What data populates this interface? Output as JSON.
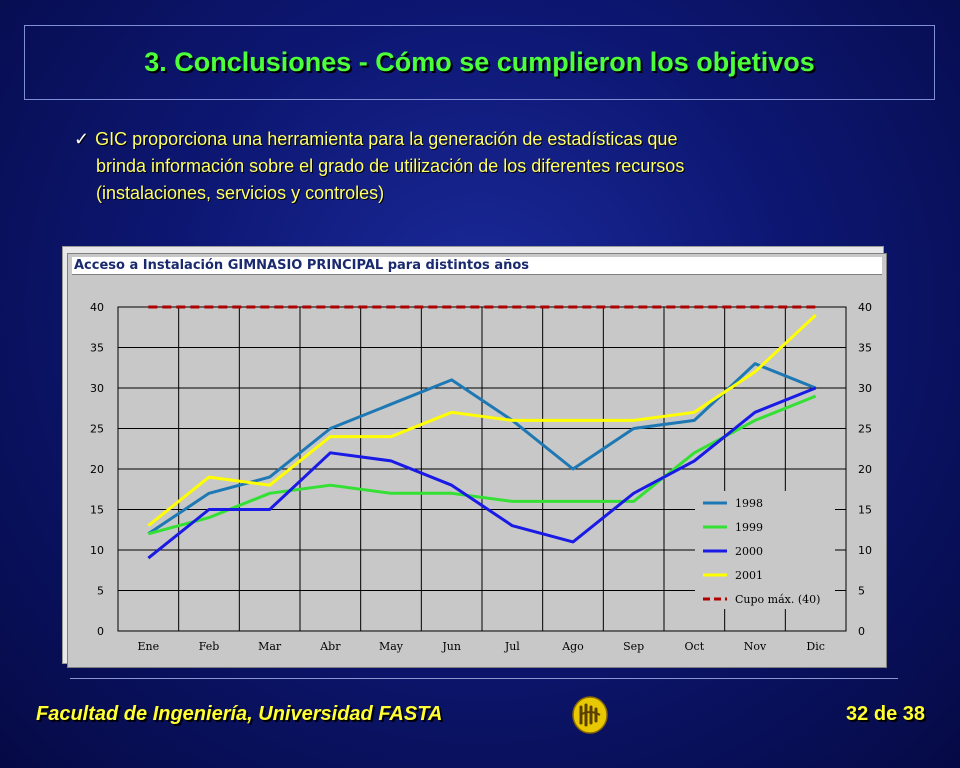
{
  "slide": {
    "title": "3.  Conclusiones - Cómo se cumplieron los objetivos",
    "bullet_line1": "GIC proporciona una herramienta para la generación de estadísticas que",
    "bullet_line2": "brinda información sobre el grado de utilización de los diferentes recursos",
    "bullet_line3": "(instalaciones, servicios y controles)",
    "check_glyph": "✓"
  },
  "footer": {
    "left": "Facultad de Ingeniería, Universidad FASTA",
    "page": "32 de 38"
  },
  "chart_data": {
    "type": "line",
    "title": "Acceso a Instalación GIMNASIO PRINCIPAL para distintos años",
    "categories": [
      "Ene",
      "Feb",
      "Mar",
      "Abr",
      "May",
      "Jun",
      "Jul",
      "Ago",
      "Sep",
      "Oct",
      "Nov",
      "Dic"
    ],
    "ylim": [
      0,
      40
    ],
    "yticks": [
      0,
      5,
      10,
      15,
      20,
      25,
      30,
      35,
      40
    ],
    "grid": true,
    "legend_position": "bottom-right",
    "series": [
      {
        "name": "1998",
        "color": "#1e78b4",
        "style": "solid",
        "values": [
          12,
          17,
          19,
          25,
          28,
          31,
          26,
          20,
          25,
          26,
          33,
          30
        ]
      },
      {
        "name": "1999",
        "color": "#33e033",
        "style": "solid",
        "values": [
          12,
          14,
          17,
          18,
          17,
          17,
          16,
          16,
          16,
          22,
          26,
          29
        ]
      },
      {
        "name": "2000",
        "color": "#1a1ae6",
        "style": "solid",
        "values": [
          9,
          15,
          15,
          22,
          21,
          18,
          13,
          11,
          17,
          21,
          27,
          30
        ]
      },
      {
        "name": "2001",
        "color": "#ffff00",
        "style": "solid",
        "values": [
          13,
          19,
          18,
          24,
          24,
          27,
          26,
          26,
          26,
          27,
          32,
          39
        ]
      },
      {
        "name": "Cupo máx. (40)",
        "color": "#b00000",
        "style": "dashed",
        "values": [
          40,
          40,
          40,
          40,
          40,
          40,
          40,
          40,
          40,
          40,
          40,
          40
        ]
      }
    ]
  }
}
